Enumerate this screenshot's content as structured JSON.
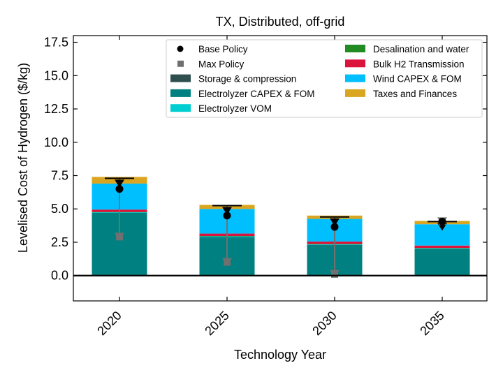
{
  "chart_data": {
    "type": "bar",
    "stacked": true,
    "title": "TX, Distributed, off-grid",
    "xlabel": "Technology Year",
    "ylabel": "Levelised Cost of Hydrogen ($/kg)",
    "ylim": [
      -1.9,
      18.0
    ],
    "yticks": [
      "0.0",
      "2.5",
      "5.0",
      "7.5",
      "10.0",
      "12.5",
      "15.0",
      "17.5"
    ],
    "categories": [
      "2020",
      "2025",
      "2030",
      "2035"
    ],
    "series": [
      {
        "name": "Storage & compression",
        "color": "#2f4f4f",
        "values": [
          0.05,
          0.05,
          0.05,
          0.05
        ]
      },
      {
        "name": "Electrolyzer CAPEX & FOM",
        "color": "#008080",
        "values": [
          4.65,
          2.85,
          2.25,
          1.95
        ]
      },
      {
        "name": "Electrolyzer VOM",
        "color": "#00ced1",
        "values": [
          0.05,
          0.05,
          0.05,
          0.05
        ]
      },
      {
        "name": "Desalination and water",
        "color": "#228b22",
        "values": [
          0.02,
          0.02,
          0.02,
          0.02
        ]
      },
      {
        "name": "Bulk H2 Transmission",
        "color": "#dc143c",
        "values": [
          0.18,
          0.18,
          0.18,
          0.18
        ]
      },
      {
        "name": "Wind CAPEX & FOM",
        "color": "#00bfff",
        "values": [
          1.95,
          1.85,
          1.7,
          1.6
        ]
      },
      {
        "name": "Taxes and Finances",
        "color": "#daa520",
        "values": [
          0.5,
          0.3,
          0.25,
          0.25
        ]
      }
    ],
    "markers": [
      {
        "name": "Base Policy",
        "color": "#000000",
        "values": [
          6.5,
          4.5,
          3.65,
          4.05
        ]
      },
      {
        "name": "Max Policy",
        "color": "#707070",
        "values": [
          2.9,
          1.0,
          0.1,
          4.05
        ]
      }
    ],
    "error_top": [
      7.3,
      5.25,
      4.4,
      4.05
    ],
    "legend": "top-right",
    "grid": false
  }
}
